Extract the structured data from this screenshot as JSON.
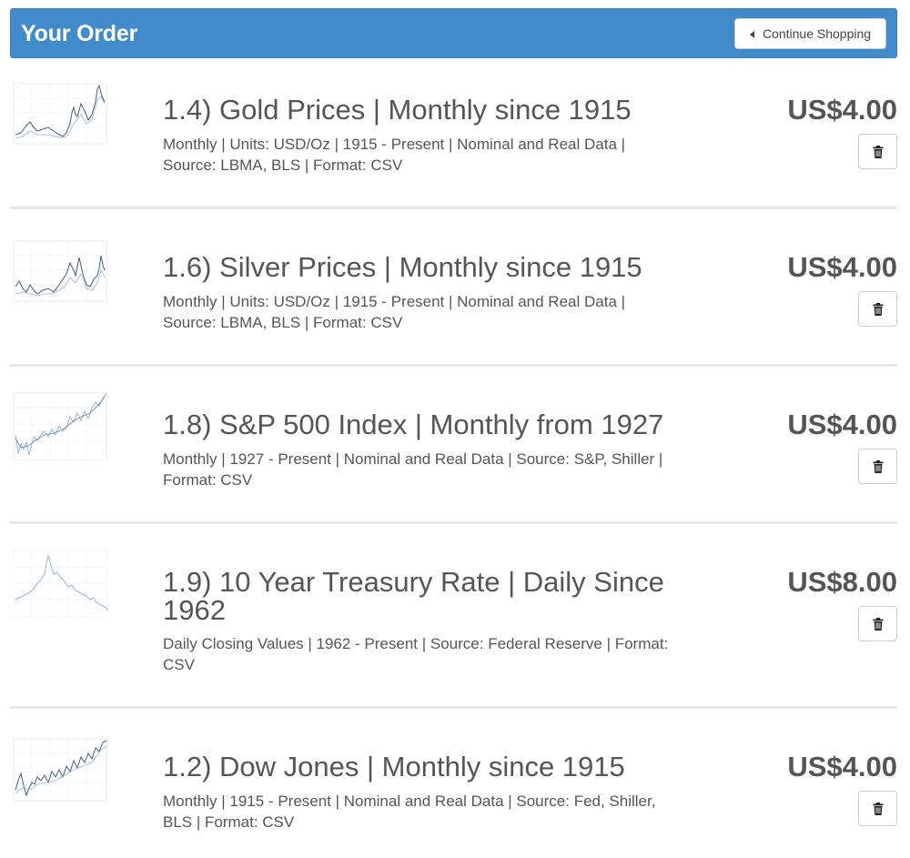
{
  "header": {
    "title": "Your Order",
    "continue_label": "Continue Shopping"
  },
  "items": [
    {
      "title": "1.4) Gold Prices | Monthly since 1915",
      "desc": "Monthly | Units: USD/Oz | 1915 - Present | Nominal and Real Data | Source: LBMA, BLS | Format: CSV",
      "price": "US$4.00"
    },
    {
      "title": "1.6) Silver Prices | Monthly since 1915",
      "desc": "Monthly | Units: USD/Oz | 1915 - Present | Nominal and Real Data | Source: LBMA, BLS | Format: CSV",
      "price": "US$4.00"
    },
    {
      "title": "1.8) S&P 500 Index | Monthly from 1927",
      "desc": "Monthly | 1927 - Present | Nominal and Real Data | Source: S&P, Shiller | Format: CSV",
      "price": "US$4.00"
    },
    {
      "title": "1.9) 10 Year Treasury Rate | Daily Since 1962",
      "desc": "Daily Closing Values | 1962 - Present | Source: Federal Reserve | Format: CSV",
      "price": "US$8.00"
    },
    {
      "title": "1.2) Dow Jones | Monthly since 1915",
      "desc": "Monthly | 1915 - Present | Nominal and Real Data | Source: Fed, Shiller, BLS | Format: CSV",
      "price": "US$4.00"
    }
  ],
  "icons": {
    "continue": "caret-left-icon",
    "delete": "trash-icon",
    "thumbnail": "chart-thumbnail"
  },
  "colors": {
    "header_bg": "#428bca",
    "header_text": "#ffffff",
    "text": "#555555",
    "thumb_line_dark": "#3d5f7a",
    "thumb_line_light": "#8fb8e0"
  }
}
